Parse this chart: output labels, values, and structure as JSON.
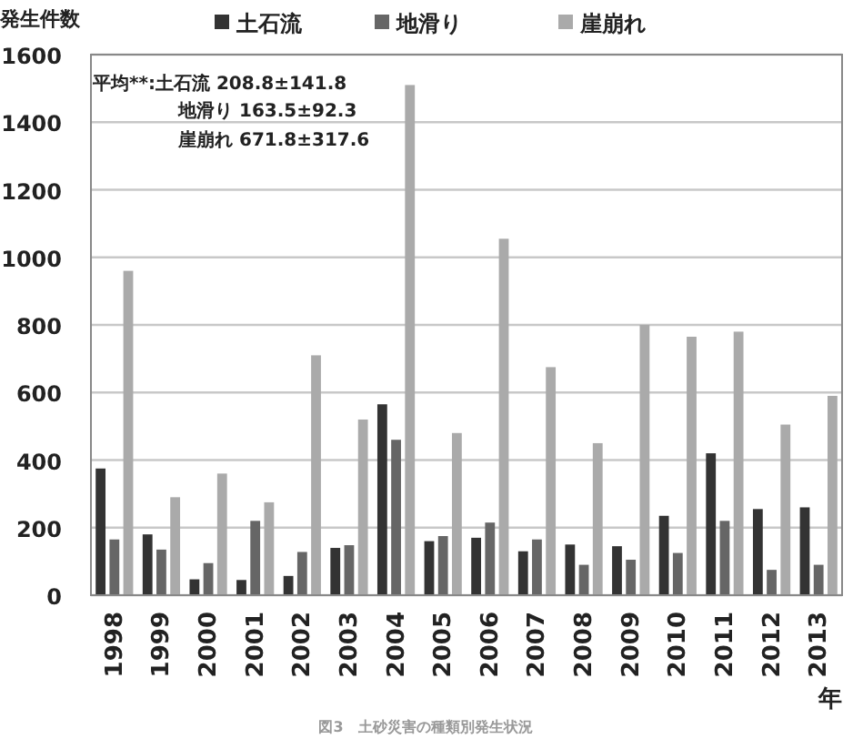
{
  "chart_data": {
    "type": "bar",
    "ylabel": "発生件数",
    "xlabel": "年",
    "categories": [
      "1998",
      "1999",
      "2000",
      "2001",
      "2002",
      "2003",
      "2004",
      "2005",
      "2006",
      "2007",
      "2008",
      "2009",
      "2010",
      "2011",
      "2012",
      "2013"
    ],
    "series": [
      {
        "name": "土石流",
        "color": "#333333",
        "values": [
          375,
          180,
          47,
          45,
          57,
          140,
          565,
          160,
          170,
          130,
          150,
          145,
          235,
          420,
          255,
          260
        ]
      },
      {
        "name": "地滑り",
        "color": "#666666",
        "values": [
          165,
          135,
          95,
          220,
          128,
          148,
          460,
          175,
          215,
          165,
          90,
          105,
          125,
          220,
          75,
          90
        ]
      },
      {
        "name": "崖崩れ",
        "color": "#aaaaaa",
        "values": [
          960,
          290,
          360,
          275,
          710,
          520,
          1510,
          480,
          1055,
          675,
          450,
          800,
          765,
          780,
          505,
          590
        ]
      }
    ],
    "ylim": [
      0,
      1600
    ],
    "yticks": [
      0,
      200,
      400,
      600,
      800,
      1000,
      1200,
      1400,
      1600
    ],
    "grid": "y",
    "legend": "top",
    "annotations": [
      "平均**:土石流 208.8±141.8",
      "地滑り 163.5±92.3",
      "崖崩れ 671.8±317.6",
      "図3　土砂災害の種類別発生状況"
    ]
  }
}
